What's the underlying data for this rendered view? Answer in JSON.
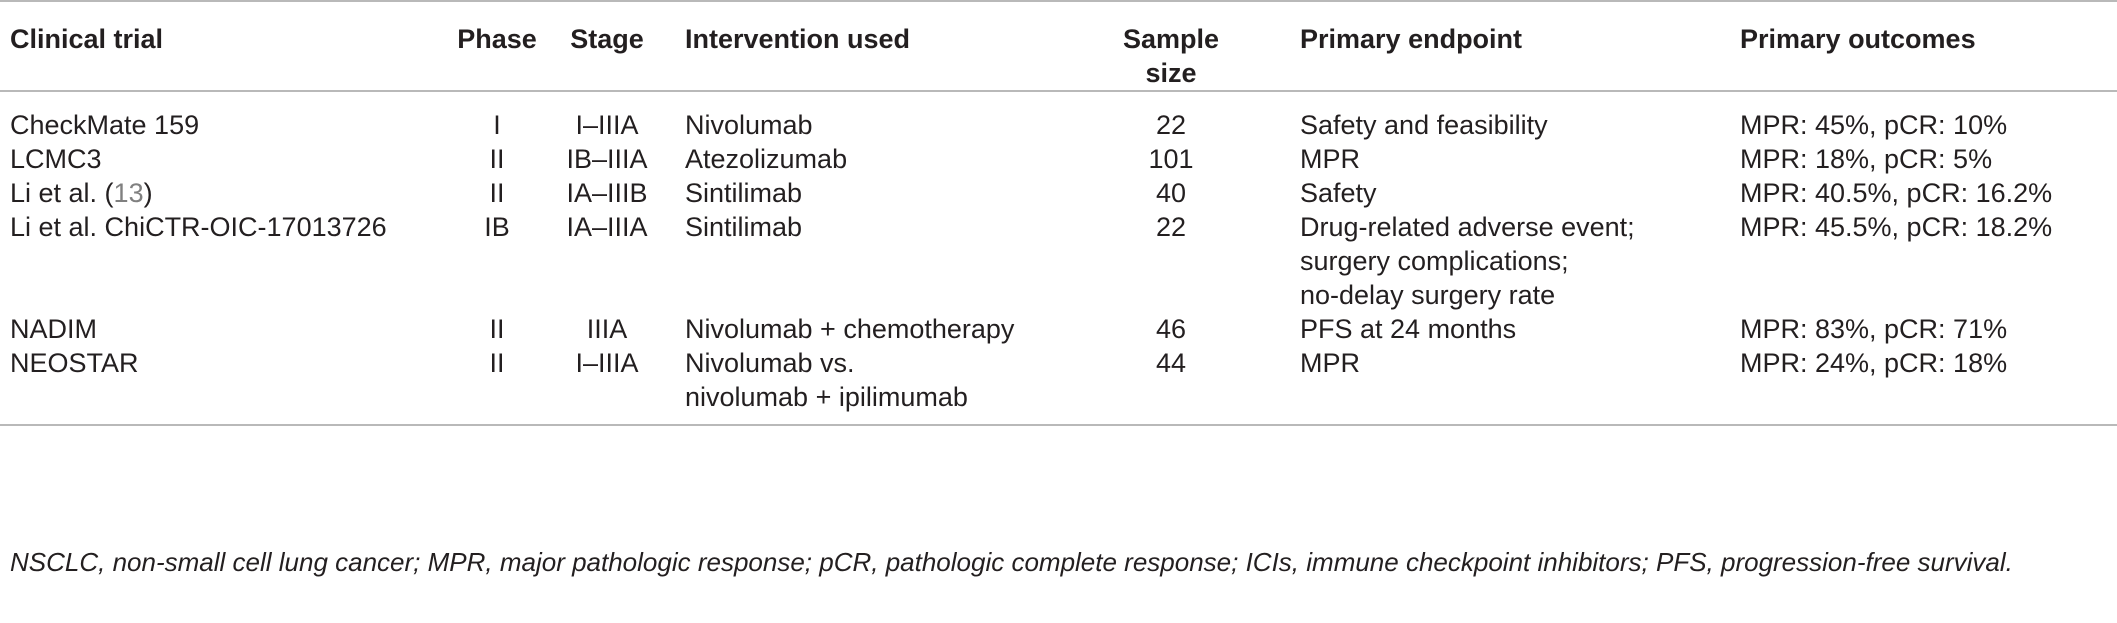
{
  "table": {
    "headers": {
      "trial": "Clinical trial",
      "phase": "Phase",
      "stage": "Stage",
      "intervention": "Intervention used",
      "sample_size_line1": "Sample",
      "sample_size_line2": "size",
      "endpoint": "Primary endpoint",
      "outcomes": "Primary outcomes"
    },
    "rows": [
      {
        "trial": "CheckMate 159",
        "phase": "I",
        "stage": "I–IIIA",
        "intervention": [
          "Nivolumab"
        ],
        "sample_size": "22",
        "endpoint": [
          "Safety and feasibility"
        ],
        "outcomes": "MPR: 45%, pCR: 10%"
      },
      {
        "trial": "LCMC3",
        "phase": "II",
        "stage": "IB–IIIA",
        "intervention": [
          "Atezolizumab"
        ],
        "sample_size": "101",
        "endpoint": [
          "MPR"
        ],
        "outcomes": "MPR: 18%, pCR: 5%"
      },
      {
        "trial_prefix": "Li et al. (",
        "trial_ref": "13",
        "trial_suffix": ")",
        "phase": "II",
        "stage": "IA–IIIB",
        "intervention": [
          "Sintilimab"
        ],
        "sample_size": "40",
        "endpoint": [
          "Safety"
        ],
        "outcomes": "MPR: 40.5%, pCR: 16.2%"
      },
      {
        "trial": "Li et al. ChiCTR-OIC-17013726",
        "phase": "IB",
        "stage": "IA–IIIA",
        "intervention": [
          "Sintilimab"
        ],
        "sample_size": "22",
        "endpoint": [
          "Drug-related adverse event;",
          "surgery complications;",
          "no-delay surgery rate"
        ],
        "outcomes": "MPR: 45.5%, pCR: 18.2%"
      },
      {
        "trial": "NADIM",
        "phase": "II",
        "stage": "IIIA",
        "intervention": [
          "Nivolumab + chemotherapy"
        ],
        "sample_size": "46",
        "endpoint": [
          "PFS at 24 months"
        ],
        "outcomes": "MPR: 83%, pCR: 71%"
      },
      {
        "trial": "NEOSTAR",
        "phase": "II",
        "stage": "I–IIIA",
        "intervention": [
          "Nivolumab vs.",
          "nivolumab + ipilimumab"
        ],
        "sample_size": "44",
        "endpoint": [
          "MPR"
        ],
        "outcomes": "MPR: 24%, pCR: 18%"
      }
    ]
  },
  "footnote": "NSCLC, non-small cell lung cancer; MPR, major pathologic response; pCR, pathologic complete response; ICIs, immune checkpoint inhibitors; PFS, progression-free survival."
}
